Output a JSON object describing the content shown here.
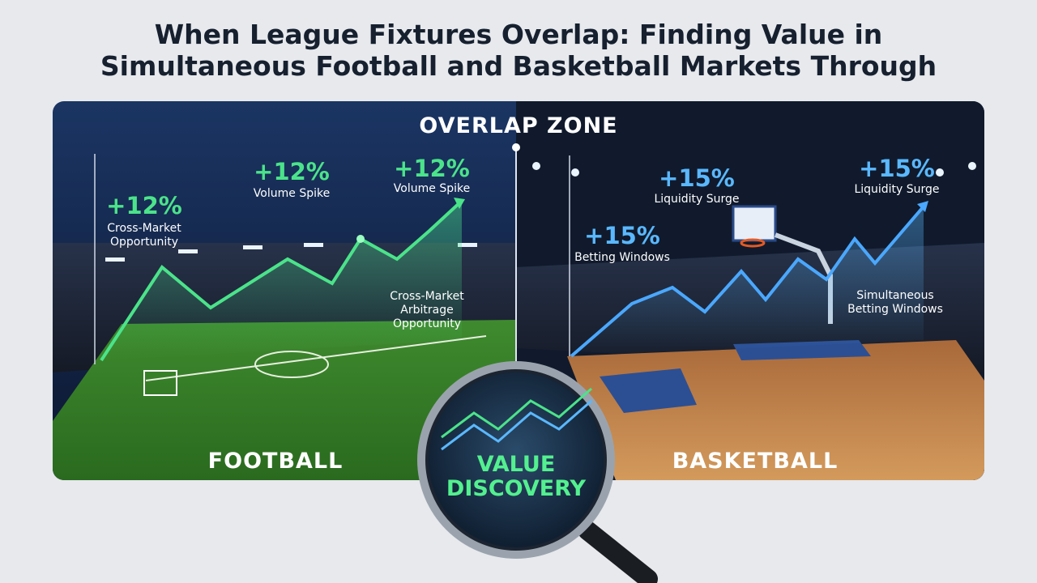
{
  "title": {
    "lines": [
      "When League Fixtures Overlap: Finding Value in",
      "Simultaneous Football and Basketball Markets Through"
    ]
  },
  "overlap_label": "OVERLAP ZONE",
  "football": {
    "label": "FOOTBALL",
    "callouts": [
      {
        "value": "+12%",
        "lines": [
          "Cross-Market",
          "Opportunity"
        ]
      },
      {
        "value": "+12%",
        "lines": [
          "Volume Spike"
        ]
      },
      {
        "value": "+12%",
        "lines": [
          "Volume Spike"
        ]
      }
    ],
    "note": [
      "Cross-Market",
      "Arbitrage",
      "Opportunity"
    ]
  },
  "basketball": {
    "label": "BASKETBALL",
    "callouts": [
      {
        "value": "+15%",
        "lines": [
          "Liquidity Surge"
        ]
      },
      {
        "value": "+15%",
        "lines": [
          "Liquidity Surge"
        ]
      },
      {
        "value": "+15%",
        "lines": [
          "Betting Windows"
        ]
      }
    ],
    "note": [
      "Simultaneous",
      "Betting Windows"
    ]
  },
  "lens": [
    "VALUE",
    "DISCOVERY"
  ]
}
